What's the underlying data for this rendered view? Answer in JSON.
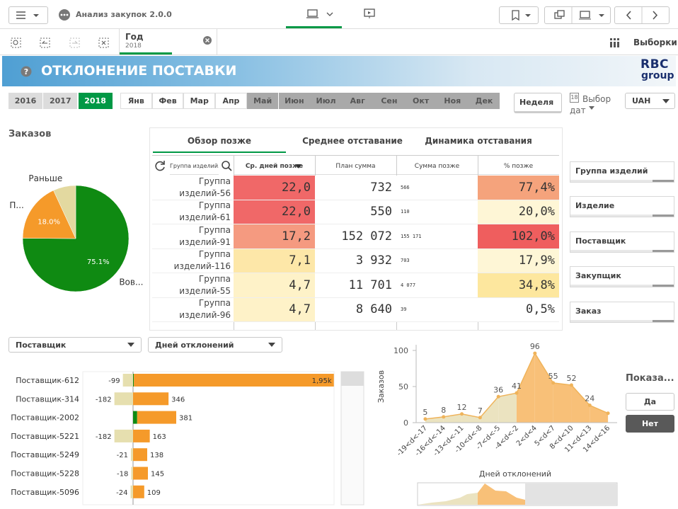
{
  "toolbar": {
    "app_title": "Анализ закупок 2.0.0",
    "selections_button": "Выборки"
  },
  "selection": {
    "field": "Год",
    "value": "2018"
  },
  "banner": {
    "title": "ОТКЛОНЕНИЕ ПОСТАВКИ",
    "logo_top": "RBC",
    "logo_bottom": "group"
  },
  "filters": {
    "years": [
      {
        "label": "2016",
        "selected": false
      },
      {
        "label": "2017",
        "selected": false
      },
      {
        "label": "2018",
        "selected": true
      }
    ],
    "months": [
      {
        "label": "Янв",
        "excluded": false
      },
      {
        "label": "Фев",
        "excluded": false
      },
      {
        "label": "Мар",
        "excluded": false
      },
      {
        "label": "Апр",
        "excluded": false
      },
      {
        "label": "Май",
        "excluded": true
      },
      {
        "label": "Июн",
        "excluded": true
      },
      {
        "label": "Июл",
        "excluded": true
      },
      {
        "label": "Авг",
        "excluded": true
      },
      {
        "label": "Сен",
        "excluded": true
      },
      {
        "label": "Окт",
        "excluded": true
      },
      {
        "label": "Ноя",
        "excluded": true
      },
      {
        "label": "Дек",
        "excluded": true
      }
    ],
    "week": "Неделя",
    "date_picker": {
      "icon": "18",
      "label": "Выбор дат"
    },
    "currency": "UAH"
  },
  "table": {
    "tabs": [
      {
        "label": "Обзор позже",
        "active": true
      },
      {
        "label": "Среднее отставание",
        "active": false
      },
      {
        "label": "Динамика отставания",
        "active": false
      }
    ],
    "columns": [
      "Группа изделий...",
      "Ср. дней позже",
      "План сумма",
      "Сумма позже",
      "% позже"
    ],
    "rows": [
      [
        "Группа изделий-56",
        "22,0",
        "732",
        "566",
        "77,4%"
      ],
      [
        "Группа изделий-61",
        "22,0",
        "550",
        "110",
        "20,0%"
      ],
      [
        "Группа изделий-91",
        "17,2",
        "152 072",
        "155 171",
        "102,0%"
      ],
      [
        "Группа изделий-116",
        "7,1",
        "3 932",
        "703",
        "17,9%"
      ],
      [
        "Группа изделий-55",
        "4,7",
        "11 701",
        "4 077",
        "34,8%"
      ],
      [
        "Группа изделий-96",
        "4,7",
        "8 640",
        "39",
        "0,5%"
      ]
    ]
  },
  "side_filters": [
    "Группа изделий",
    "Изделие",
    "Поставщик",
    "Закупщик",
    "Заказ"
  ],
  "bottom_filters": [
    "Поставщик",
    "Дней отклонений"
  ],
  "toggle": {
    "title": "Показа...",
    "options": [
      {
        "label": "Да",
        "selected": false
      },
      {
        "label": "Нет",
        "selected": true
      }
    ]
  },
  "chart_data": [
    {
      "type": "pie",
      "title": "Заказов",
      "categories": [
        "Вов...",
        "П...",
        "Раньше"
      ],
      "values": [
        75.1,
        18.0,
        6.9
      ],
      "value_labels": [
        "75.1%",
        "18.0%",
        null
      ],
      "colors": [
        "#0f8a12",
        "#f59a2a",
        "#e3d9a0"
      ]
    },
    {
      "type": "hbar",
      "categories": [
        "Поставщик-612",
        "Поставщик-314",
        "Поставщик-2002",
        "Поставщик-5221",
        "Поставщик-5249",
        "Поставщик-5228",
        "Поставщик-5096"
      ],
      "series": [
        {
          "color": "#e6dfaf",
          "show_labels": true,
          "values": [
            -99,
            -182,
            null,
            -182,
            -21,
            -18,
            -24
          ]
        },
        {
          "color": "#0f8a12",
          "show_labels": false,
          "values": [
            8,
            null,
            40,
            null,
            null,
            null,
            null
          ]
        },
        {
          "color": "#f59a2a",
          "show_labels": true,
          "values": [
            1950,
            346,
            381,
            163,
            138,
            145,
            109
          ],
          "value_labels": [
            "1,95k",
            "346",
            "381",
            "163",
            "138",
            "145",
            "109"
          ]
        }
      ],
      "xlim": [
        -490,
        1960
      ]
    },
    {
      "type": "area",
      "xlabel": "Дней отклонений",
      "ylabel": "Заказов",
      "categories": [
        "-19<d<-17",
        "-16<d<-14",
        "-13<d<-11",
        "-10<d<-8",
        "-7<d<-5",
        "-4<d<-2",
        "2<d<4",
        "5<d<7",
        "8<d<10",
        "11<d<13",
        "14<d<16"
      ],
      "values": [
        5,
        8,
        12,
        7,
        36,
        41,
        96,
        55,
        52,
        24,
        13
      ],
      "value_labels": [
        "5",
        "8",
        "12",
        "7",
        "36",
        "41",
        "96",
        "55",
        "52",
        "24",
        null
      ],
      "colors": [
        "#ebe3c0",
        "#ebe3c0",
        "#ebe3c0",
        "#ebe3c0",
        "#ebe3c0",
        "#ebe3c0",
        "#f8c078",
        "#f8c078",
        "#f8c078",
        "#f8c078",
        "#f8c078"
      ],
      "line_color": "#efb35a",
      "ylim": [
        0,
        100
      ],
      "yticks": [
        0,
        50,
        100
      ]
    }
  ]
}
